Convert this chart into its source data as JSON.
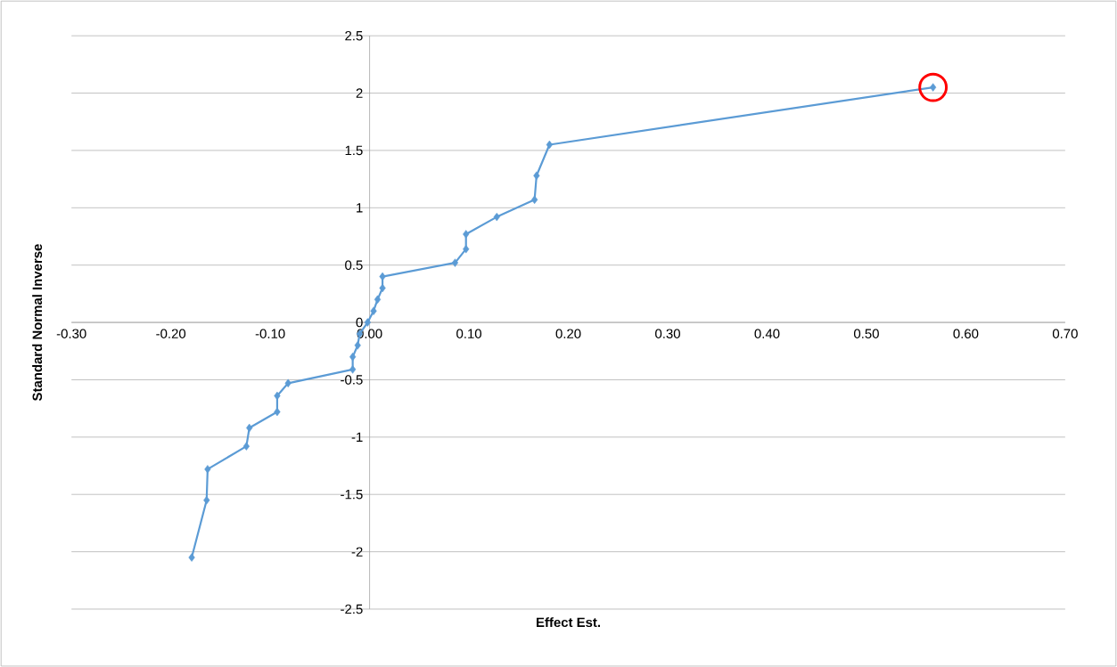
{
  "chart_data": {
    "type": "line",
    "xlabel": "Effect Est.",
    "ylabel": "Standard Normal Inverse",
    "xlim": [
      -0.3,
      0.7
    ],
    "ylim": [
      -2.5,
      2.5
    ],
    "xticks": [
      {
        "value": -0.3,
        "label": "-0.30"
      },
      {
        "value": -0.2,
        "label": "-0.20"
      },
      {
        "value": -0.1,
        "label": "-0.10"
      },
      {
        "value": 0,
        "label": "0.00"
      },
      {
        "value": 0.1,
        "label": "0.10"
      },
      {
        "value": 0.2,
        "label": "0.20"
      },
      {
        "value": 0.3,
        "label": "0.30"
      },
      {
        "value": 0.4,
        "label": "0.40"
      },
      {
        "value": 0.5,
        "label": "0.50"
      },
      {
        "value": 0.6,
        "label": "0.60"
      },
      {
        "value": 0.7,
        "label": "0.70"
      }
    ],
    "yticks": [
      -2.5,
      -2,
      -1.5,
      -1,
      -0.5,
      0,
      0.5,
      1,
      1.5,
      2,
      2.5
    ],
    "grid": "y",
    "marker": "diamond",
    "line_style": "solid",
    "series": [
      {
        "color": "#5b9bd5",
        "x": [
          -0.179,
          -0.164,
          -0.163,
          -0.124,
          -0.121,
          -0.093,
          -0.093,
          -0.082,
          -0.017,
          -0.017,
          -0.012,
          -0.01,
          -0.002,
          0.004,
          0.008,
          0.013,
          0.013,
          0.086,
          0.097,
          0.097,
          0.128,
          0.166,
          0.168,
          0.181,
          0.567
        ],
        "values": [
          -2.05,
          -1.55,
          -1.28,
          -1.08,
          -0.92,
          -0.78,
          -0.64,
          -0.53,
          -0.41,
          -0.3,
          -0.2,
          -0.1,
          0,
          0.1,
          0.2,
          0.3,
          0.4,
          0.52,
          0.64,
          0.77,
          0.92,
          1.07,
          1.28,
          1.55,
          2.05
        ]
      }
    ]
  }
}
